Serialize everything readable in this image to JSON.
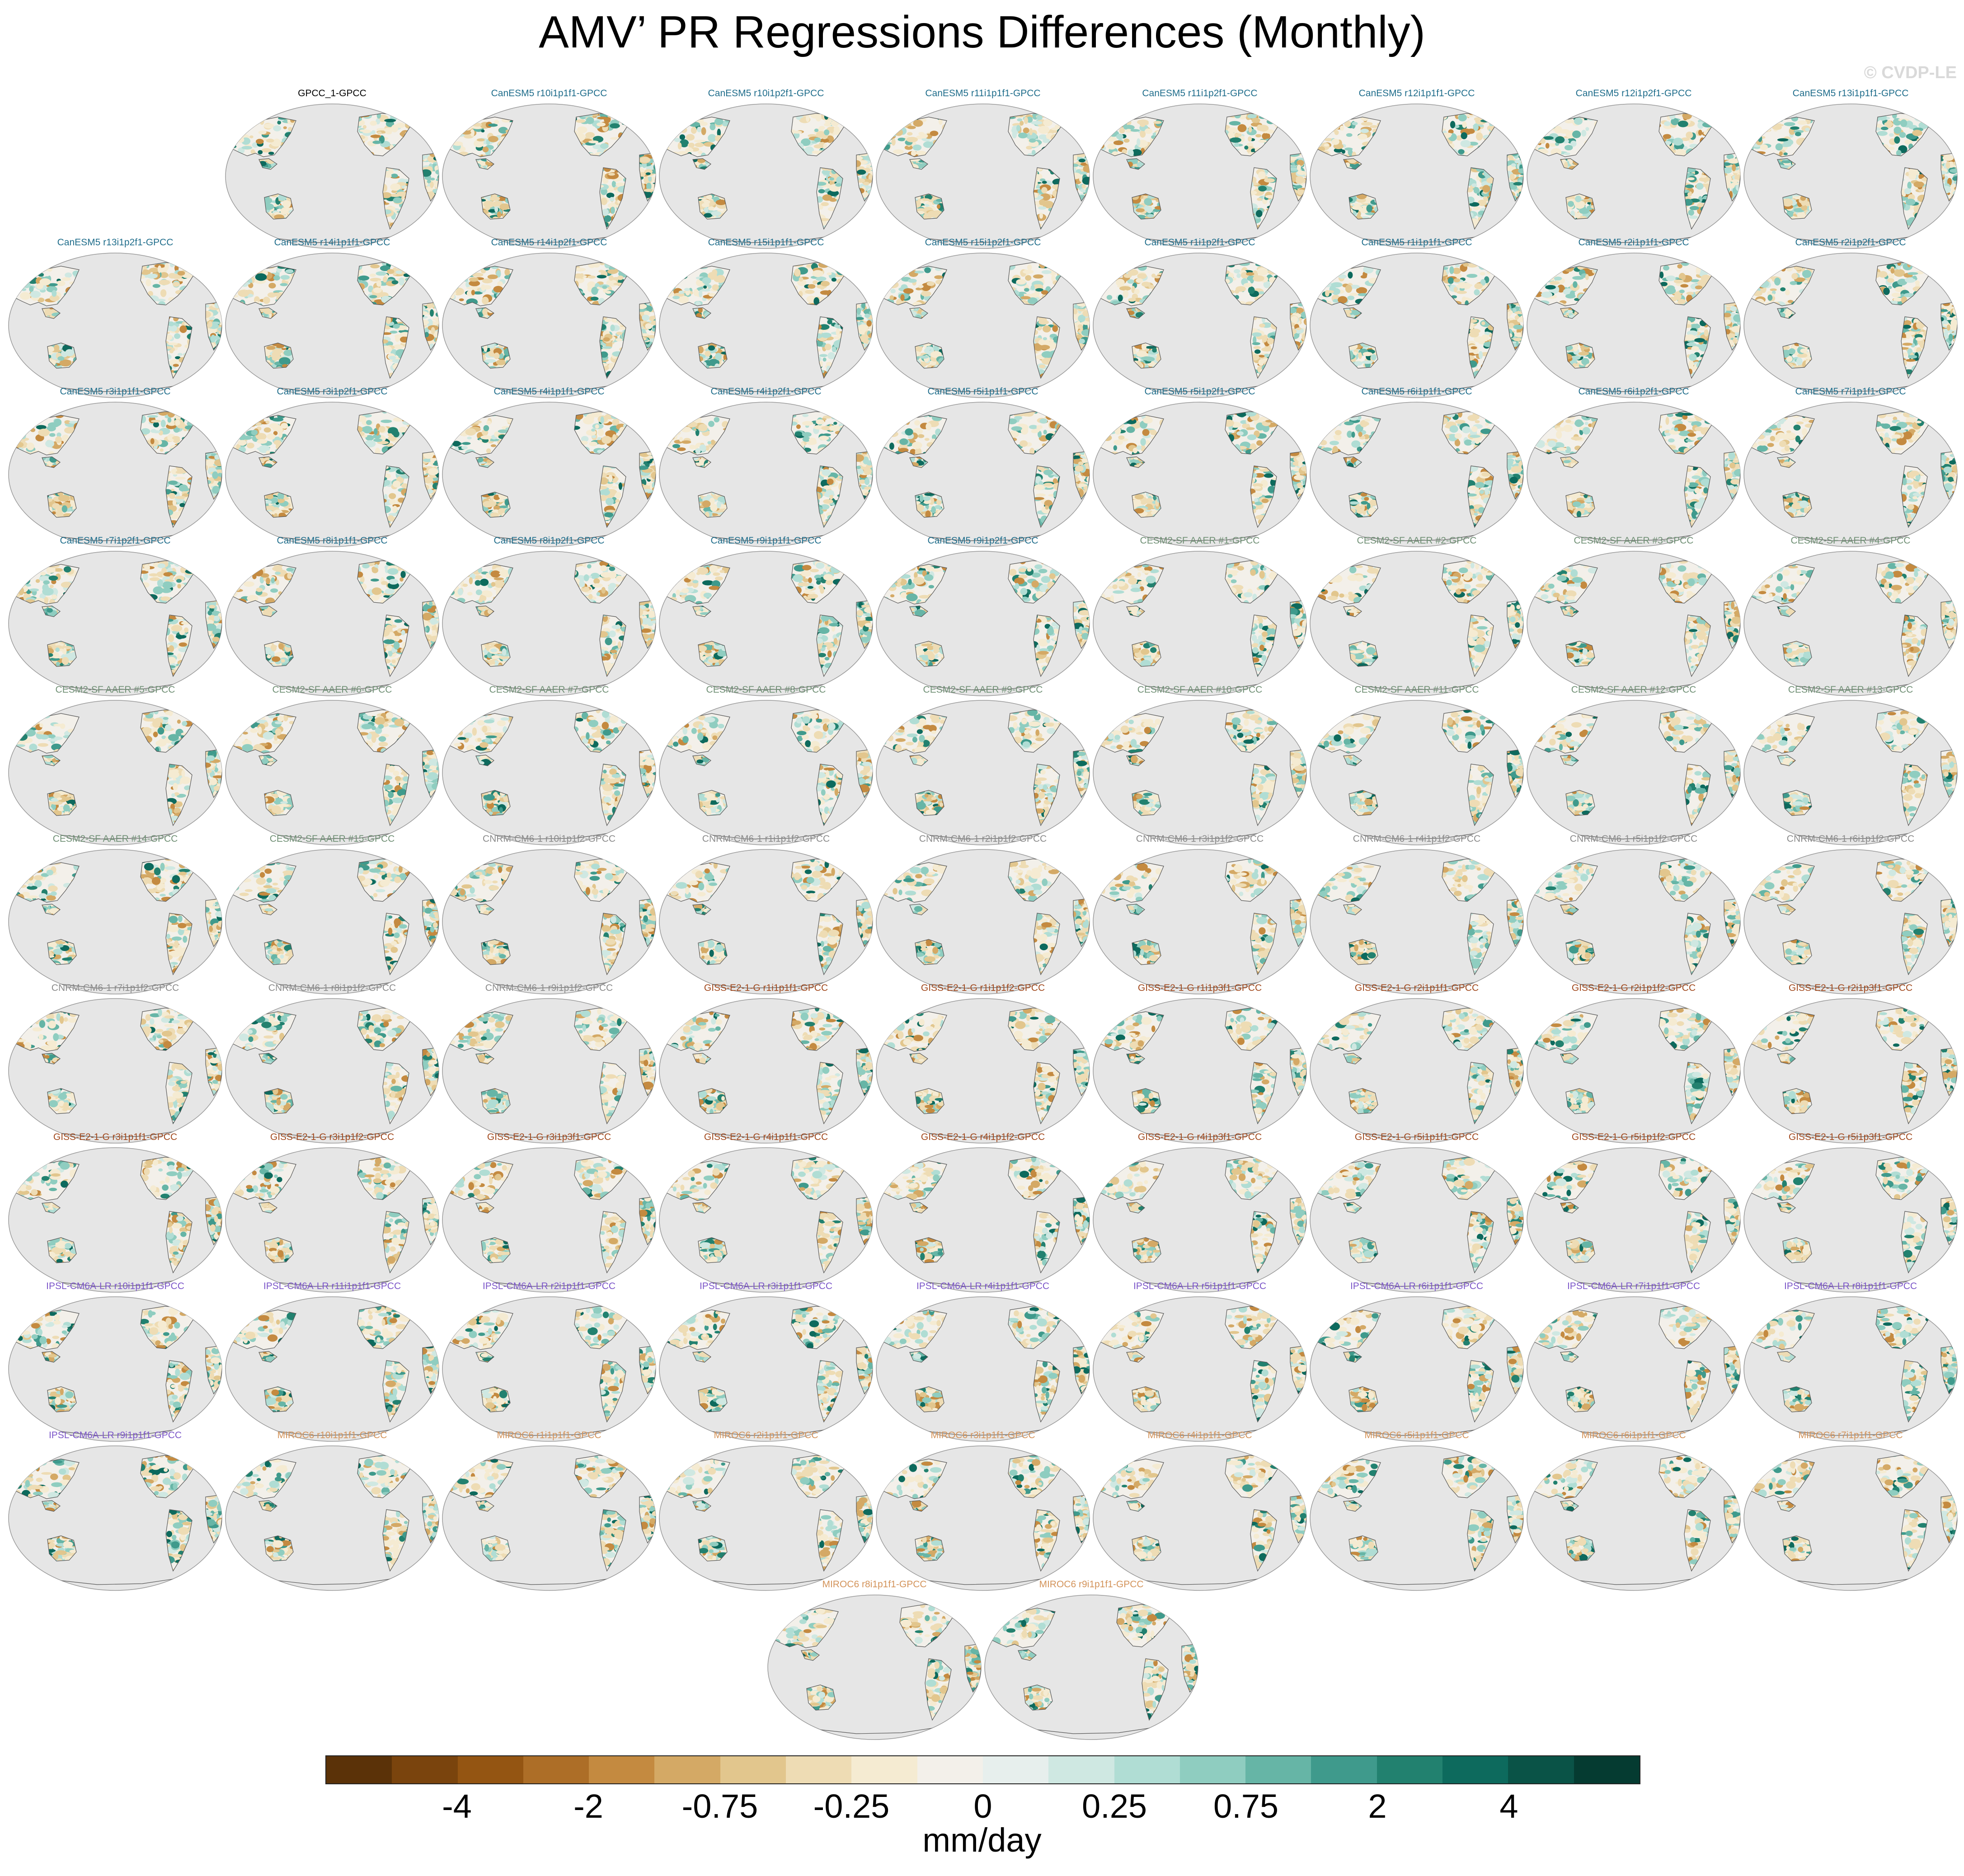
{
  "figure": {
    "title": "AMV’ PR Regressions Differences (Monthly)",
    "credit": "© CVDP-LE"
  },
  "colors": {
    "CanESM5": "#1f6d8b",
    "CESM2-SF AAER": "#6f8f74",
    "CNRM-CM6-1": "#8a8a8a",
    "GISS-E2-1-G": "#a0471b",
    "IPSL-CM6A-LR": "#7b55c8",
    "MIROC6": "#d3935a",
    "observation": "#000000",
    "ocean": "#e6e6e6",
    "coast": "#555555"
  },
  "panels": [
    {
      "title": "GPCC_1-GPCC",
      "model": "observation"
    },
    {
      "title": "CanESM5 r10i1p1f1-GPCC",
      "model": "CanESM5"
    },
    {
      "title": "CanESM5 r10i1p2f1-GPCC",
      "model": "CanESM5"
    },
    {
      "title": "CanESM5 r11i1p1f1-GPCC",
      "model": "CanESM5"
    },
    {
      "title": "CanESM5 r11i1p2f1-GPCC",
      "model": "CanESM5"
    },
    {
      "title": "CanESM5 r12i1p1f1-GPCC",
      "model": "CanESM5"
    },
    {
      "title": "CanESM5 r12i1p2f1-GPCC",
      "model": "CanESM5"
    },
    {
      "title": "CanESM5 r13i1p1f1-GPCC",
      "model": "CanESM5"
    },
    {
      "title": "CanESM5 r13i1p2f1-GPCC",
      "model": "CanESM5"
    },
    {
      "title": "CanESM5 r14i1p1f1-GPCC",
      "model": "CanESM5"
    },
    {
      "title": "CanESM5 r14i1p2f1-GPCC",
      "model": "CanESM5"
    },
    {
      "title": "CanESM5 r15i1p1f1-GPCC",
      "model": "CanESM5"
    },
    {
      "title": "CanESM5 r15i1p2f1-GPCC",
      "model": "CanESM5"
    },
    {
      "title": "CanESM5 r1i1p2f1-GPCC",
      "model": "CanESM5"
    },
    {
      "title": "CanESM5 r1i1p1f1-GPCC",
      "model": "CanESM5"
    },
    {
      "title": "CanESM5 r2i1p1f1-GPCC",
      "model": "CanESM5"
    },
    {
      "title": "CanESM5 r2i1p2f1-GPCC",
      "model": "CanESM5"
    },
    {
      "title": "CanESM5 r3i1p1f1-GPCC",
      "model": "CanESM5"
    },
    {
      "title": "CanESM5 r3i1p2f1-GPCC",
      "model": "CanESM5"
    },
    {
      "title": "CanESM5 r4i1p1f1-GPCC",
      "model": "CanESM5"
    },
    {
      "title": "CanESM5 r4i1p2f1-GPCC",
      "model": "CanESM5"
    },
    {
      "title": "CanESM5 r5i1p1f1-GPCC",
      "model": "CanESM5"
    },
    {
      "title": "CanESM5 r5i1p2f1-GPCC",
      "model": "CanESM5"
    },
    {
      "title": "CanESM5 r6i1p1f1-GPCC",
      "model": "CanESM5"
    },
    {
      "title": "CanESM5 r6i1p2f1-GPCC",
      "model": "CanESM5"
    },
    {
      "title": "CanESM5 r7i1p1f1-GPCC",
      "model": "CanESM5"
    },
    {
      "title": "CanESM5 r7i1p2f1-GPCC",
      "model": "CanESM5"
    },
    {
      "title": "CanESM5 r8i1p1f1-GPCC",
      "model": "CanESM5"
    },
    {
      "title": "CanESM5 r8i1p2f1-GPCC",
      "model": "CanESM5"
    },
    {
      "title": "CanESM5 r9i1p1f1-GPCC",
      "model": "CanESM5"
    },
    {
      "title": "CanESM5 r9i1p2f1-GPCC",
      "model": "CanESM5"
    },
    {
      "title": "CESM2-SF AAER #1-GPCC",
      "model": "CESM2-SF AAER"
    },
    {
      "title": "CESM2-SF AAER #2-GPCC",
      "model": "CESM2-SF AAER"
    },
    {
      "title": "CESM2-SF AAER #3-GPCC",
      "model": "CESM2-SF AAER"
    },
    {
      "title": "CESM2-SF AAER #4-GPCC",
      "model": "CESM2-SF AAER"
    },
    {
      "title": "CESM2-SF AAER #5-GPCC",
      "model": "CESM2-SF AAER"
    },
    {
      "title": "CESM2-SF AAER #6-GPCC",
      "model": "CESM2-SF AAER"
    },
    {
      "title": "CESM2-SF AAER #7-GPCC",
      "model": "CESM2-SF AAER"
    },
    {
      "title": "CESM2-SF AAER #8-GPCC",
      "model": "CESM2-SF AAER"
    },
    {
      "title": "CESM2-SF AAER #9-GPCC",
      "model": "CESM2-SF AAER"
    },
    {
      "title": "CESM2-SF AAER #10-GPCC",
      "model": "CESM2-SF AAER"
    },
    {
      "title": "CESM2-SF AAER #11-GPCC",
      "model": "CESM2-SF AAER"
    },
    {
      "title": "CESM2-SF AAER #12-GPCC",
      "model": "CESM2-SF AAER"
    },
    {
      "title": "CESM2-SF AAER #13-GPCC",
      "model": "CESM2-SF AAER"
    },
    {
      "title": "CESM2-SF AAER #14-GPCC",
      "model": "CESM2-SF AAER"
    },
    {
      "title": "CESM2-SF AAER #15-GPCC",
      "model": "CESM2-SF AAER"
    },
    {
      "title": "CNRM-CM6-1 r10i1p1f2-GPCC",
      "model": "CNRM-CM6-1"
    },
    {
      "title": "CNRM-CM6-1 r1i1p1f2-GPCC",
      "model": "CNRM-CM6-1"
    },
    {
      "title": "CNRM-CM6-1 r2i1p1f2-GPCC",
      "model": "CNRM-CM6-1"
    },
    {
      "title": "CNRM-CM6-1 r3i1p1f2-GPCC",
      "model": "CNRM-CM6-1"
    },
    {
      "title": "CNRM-CM6-1 r4i1p1f2-GPCC",
      "model": "CNRM-CM6-1"
    },
    {
      "title": "CNRM-CM6-1 r5i1p1f2-GPCC",
      "model": "CNRM-CM6-1"
    },
    {
      "title": "CNRM-CM6-1 r6i1p1f2-GPCC",
      "model": "CNRM-CM6-1"
    },
    {
      "title": "CNRM-CM6-1 r7i1p1f2-GPCC",
      "model": "CNRM-CM6-1"
    },
    {
      "title": "CNRM-CM6-1 r8i1p1f2-GPCC",
      "model": "CNRM-CM6-1"
    },
    {
      "title": "CNRM-CM6-1 r9i1p1f2-GPCC",
      "model": "CNRM-CM6-1"
    },
    {
      "title": "GISS-E2-1-G r1i1p1f1-GPCC",
      "model": "GISS-E2-1-G"
    },
    {
      "title": "GISS-E2-1-G r1i1p1f2-GPCC",
      "model": "GISS-E2-1-G"
    },
    {
      "title": "GISS-E2-1-G r1i1p3f1-GPCC",
      "model": "GISS-E2-1-G"
    },
    {
      "title": "GISS-E2-1-G r2i1p1f1-GPCC",
      "model": "GISS-E2-1-G"
    },
    {
      "title": "GISS-E2-1-G r2i1p1f2-GPCC",
      "model": "GISS-E2-1-G"
    },
    {
      "title": "GISS-E2-1-G r2i1p3f1-GPCC",
      "model": "GISS-E2-1-G"
    },
    {
      "title": "GISS-E2-1-G r3i1p1f1-GPCC",
      "model": "GISS-E2-1-G"
    },
    {
      "title": "GISS-E2-1-G r3i1p1f2-GPCC",
      "model": "GISS-E2-1-G"
    },
    {
      "title": "GISS-E2-1-G r3i1p3f1-GPCC",
      "model": "GISS-E2-1-G"
    },
    {
      "title": "GISS-E2-1-G r4i1p1f1-GPCC",
      "model": "GISS-E2-1-G"
    },
    {
      "title": "GISS-E2-1-G r4i1p1f2-GPCC",
      "model": "GISS-E2-1-G"
    },
    {
      "title": "GISS-E2-1-G r4i1p3f1-GPCC",
      "model": "GISS-E2-1-G"
    },
    {
      "title": "GISS-E2-1-G r5i1p1f1-GPCC",
      "model": "GISS-E2-1-G"
    },
    {
      "title": "GISS-E2-1-G r5i1p1f2-GPCC",
      "model": "GISS-E2-1-G"
    },
    {
      "title": "GISS-E2-1-G r5i1p3f1-GPCC",
      "model": "GISS-E2-1-G"
    },
    {
      "title": "IPSL-CM6A-LR r10i1p1f1-GPCC",
      "model": "IPSL-CM6A-LR"
    },
    {
      "title": "IPSL-CM6A-LR r11i1p1f1-GPCC",
      "model": "IPSL-CM6A-LR"
    },
    {
      "title": "IPSL-CM6A-LR r2i1p1f1-GPCC",
      "model": "IPSL-CM6A-LR"
    },
    {
      "title": "IPSL-CM6A-LR r3i1p1f1-GPCC",
      "model": "IPSL-CM6A-LR"
    },
    {
      "title": "IPSL-CM6A-LR r4i1p1f1-GPCC",
      "model": "IPSL-CM6A-LR"
    },
    {
      "title": "IPSL-CM6A-LR r5i1p1f1-GPCC",
      "model": "IPSL-CM6A-LR"
    },
    {
      "title": "IPSL-CM6A-LR r6i1p1f1-GPCC",
      "model": "IPSL-CM6A-LR"
    },
    {
      "title": "IPSL-CM6A-LR r7i1p1f1-GPCC",
      "model": "IPSL-CM6A-LR"
    },
    {
      "title": "IPSL-CM6A-LR r8i1p1f1-GPCC",
      "model": "IPSL-CM6A-LR"
    },
    {
      "title": "IPSL-CM6A-LR r9i1p1f1-GPCC",
      "model": "IPSL-CM6A-LR"
    },
    {
      "title": "MIROC6 r10i1p1f1-GPCC",
      "model": "MIROC6"
    },
    {
      "title": "MIROC6 r1i1p1f1-GPCC",
      "model": "MIROC6"
    },
    {
      "title": "MIROC6 r2i1p1f1-GPCC",
      "model": "MIROC6"
    },
    {
      "title": "MIROC6 r3i1p1f1-GPCC",
      "model": "MIROC6"
    },
    {
      "title": "MIROC6 r4i1p1f1-GPCC",
      "model": "MIROC6"
    },
    {
      "title": "MIROC6 r5i1p1f1-GPCC",
      "model": "MIROC6"
    },
    {
      "title": "MIROC6 r6i1p1f1-GPCC",
      "model": "MIROC6"
    },
    {
      "title": "MIROC6 r7i1p1f1-GPCC",
      "model": "MIROC6"
    },
    {
      "title": "MIROC6 r8i1p1f1-GPCC",
      "model": "MIROC6"
    },
    {
      "title": "MIROC6 r9i1p1f1-GPCC",
      "model": "MIROC6"
    }
  ],
  "colorbar": {
    "units": "mm/day",
    "tick_labels": [
      "-4",
      "-2",
      "-0.75",
      "-0.25",
      "0",
      "0.25",
      "0.75",
      "2",
      "4"
    ],
    "colors": [
      "#5b3208",
      "#7a440d",
      "#945512",
      "#ad6e27",
      "#c48a40",
      "#d4a965",
      "#e2c68d",
      "#eedcb4",
      "#f5ebd2",
      "#f3f0ea",
      "#e7efed",
      "#cfe8e2",
      "#b0ddd4",
      "#8fcdc0",
      "#66b5a6",
      "#3f9a8c",
      "#22816f",
      "#0d6a5d",
      "#0a5347",
      "#053b31"
    ]
  }
}
